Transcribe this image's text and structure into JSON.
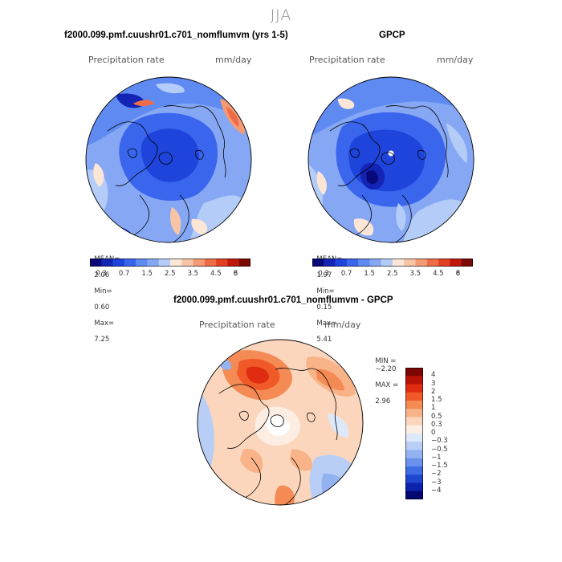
{
  "figure": {
    "season": "JJA",
    "colors": {
      "water": "#f7fafd",
      "land_fill": "none",
      "coast": "#000000"
    }
  },
  "panels": {
    "model": {
      "title": "f2000.099.pmf.cuushr01.c701_nomflumvm (yrs 1-5)",
      "variable": "Precipitation rate",
      "units": "mm/day",
      "stats": {
        "mean_label": "MEAN=",
        "mean": "2.06",
        "min_label": "Min=",
        "min": "0.60",
        "max_label": "Max=",
        "max": "7.25"
      }
    },
    "obs": {
      "title": "GPCP",
      "variable": "Precipitation rate",
      "units": "mm/day",
      "stats": {
        "mean_label": "MEAN=",
        "mean": "1.97",
        "min_label": "Min=",
        "min": "0.15",
        "max_label": "Max=",
        "max": "5.41"
      }
    },
    "diff": {
      "title": "f2000.099.pmf.cuushr01.c701_nomflumvm - GPCP",
      "variable": "Precipitation rate",
      "units": "mm/day",
      "stats": {
        "min_label": "MIN =",
        "min": "−2.20",
        "max_label": "MAX =",
        "max": "2.96"
      }
    }
  },
  "precip_colorbar": {
    "colors": [
      "#08087a",
      "#1424b4",
      "#1e44dc",
      "#3a66ee",
      "#5e8af2",
      "#86a8f4",
      "#b4ccf8",
      "#fde6d6",
      "#f8c4a6",
      "#f49a74",
      "#ee6c48",
      "#e24020",
      "#c01808",
      "#7c0a04"
    ],
    "tick_labels": [
      "0.3",
      "0.7",
      "1.5",
      "2.5",
      "3.5",
      "4.5",
      "6",
      "8"
    ]
  },
  "diff_colorbar": {
    "colors": [
      "#7c0604",
      "#b81206",
      "#e02c10",
      "#f05a28",
      "#f48a54",
      "#f8b488",
      "#fcd6bc",
      "#fdeee4",
      "#dde8fa",
      "#b8cef6",
      "#92b2f0",
      "#6a92ec",
      "#3e6ce2",
      "#1e46d0",
      "#0c22ac",
      "#060872"
    ],
    "tick_labels": [
      "4",
      "3",
      "2",
      "1.5",
      "1",
      "0.5",
      "0.3",
      "0",
      "−0.3",
      "−0.5",
      "−1",
      "−1.5",
      "−2",
      "−3",
      "−4"
    ]
  }
}
